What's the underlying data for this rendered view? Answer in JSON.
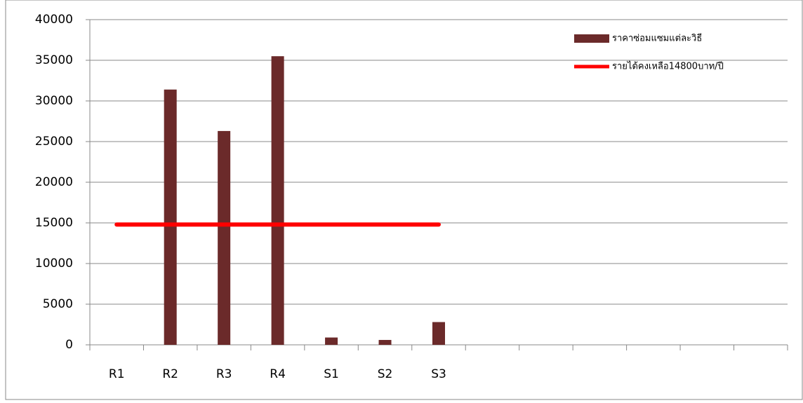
{
  "chart_data": {
    "type": "bar",
    "categories": [
      "R1",
      "R2",
      "R3",
      "R4",
      "S1",
      "S2",
      "S3",
      null,
      null,
      null,
      null,
      null,
      null
    ],
    "series": [
      {
        "name": "ราคาซ่อมแซมแต่ละวิธี",
        "type": "bar",
        "color": "#6b2a2a",
        "values": [
          0,
          31400,
          26300,
          35500,
          900,
          600,
          2800,
          null,
          null,
          null,
          null,
          null,
          null
        ]
      },
      {
        "name": "รายได้คงเหลือ14800บาท/ปี",
        "type": "line",
        "color": "#ff0000",
        "values": [
          14800,
          14800,
          14800,
          14800,
          14800,
          14800,
          14800,
          null,
          null,
          null,
          null,
          null,
          null
        ]
      }
    ],
    "ylim": [
      0,
      40000
    ],
    "yticks": [
      0,
      5000,
      10000,
      15000,
      20000,
      25000,
      30000,
      35000,
      40000
    ],
    "grid": true,
    "legend": "top-right"
  }
}
